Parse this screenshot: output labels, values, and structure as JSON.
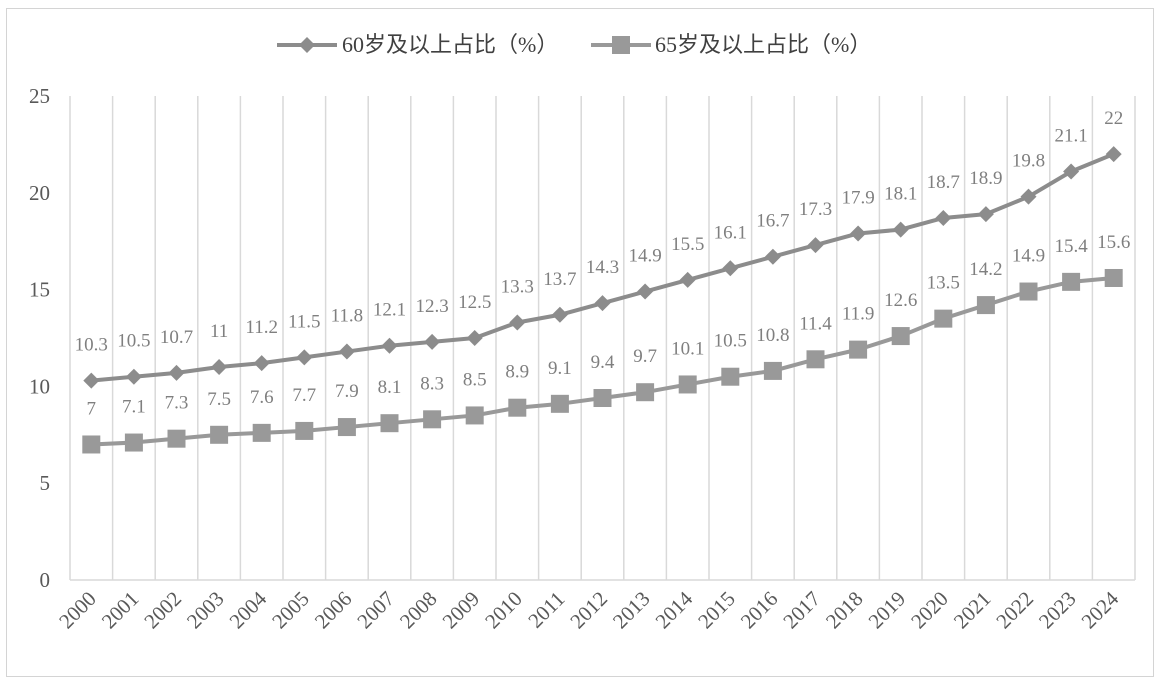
{
  "chart_data": {
    "type": "line",
    "title": "",
    "xlabel": "",
    "ylabel": "",
    "ylim": [
      0,
      25
    ],
    "yticks": [
      0,
      5,
      10,
      15,
      20,
      25
    ],
    "grid": "vertical",
    "legend_position": "top",
    "categories": [
      "2000",
      "2001",
      "2002",
      "2003",
      "2004",
      "2005",
      "2006",
      "2007",
      "2008",
      "2009",
      "2010",
      "2011",
      "2012",
      "2013",
      "2014",
      "2015",
      "2016",
      "2017",
      "2018",
      "2019",
      "2020",
      "2021",
      "2022",
      "2023",
      "2024"
    ],
    "series": [
      {
        "name": "60岁及以上占比（%）",
        "marker": "diamond",
        "color": "#8c8c8c",
        "values": [
          10.3,
          10.5,
          10.7,
          11,
          11.2,
          11.5,
          11.8,
          12.1,
          12.3,
          12.5,
          13.3,
          13.7,
          14.3,
          14.9,
          15.5,
          16.1,
          16.7,
          17.3,
          17.9,
          18.1,
          18.7,
          18.9,
          19.8,
          21.1,
          22
        ]
      },
      {
        "name": "65岁及以上占比（%）",
        "marker": "square",
        "color": "#999999",
        "values": [
          7,
          7.1,
          7.3,
          7.5,
          7.6,
          7.7,
          7.9,
          8.1,
          8.3,
          8.5,
          8.9,
          9.1,
          9.4,
          9.7,
          10.1,
          10.5,
          10.8,
          11.4,
          11.9,
          12.6,
          13.5,
          14.2,
          14.9,
          15.4,
          15.6
        ]
      }
    ]
  }
}
